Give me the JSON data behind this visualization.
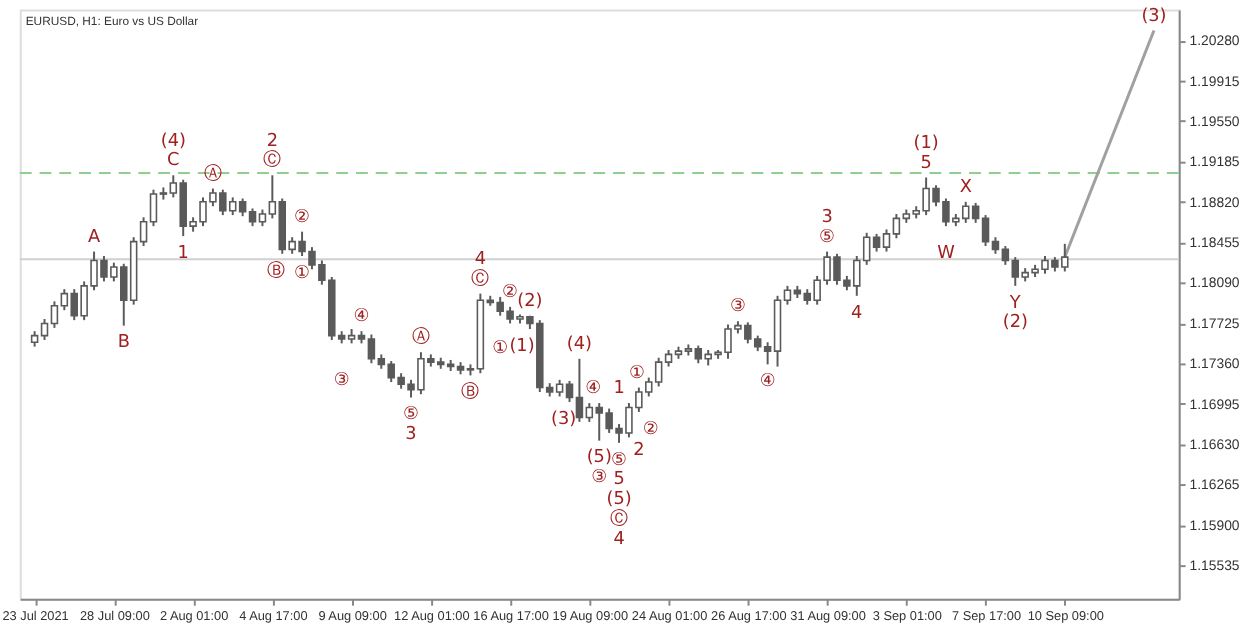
{
  "chart_data": {
    "type": "candlestick",
    "title": "EURUSD, H1:  Euro vs US Dollar",
    "categories": [
      "23 Jul 2021",
      null,
      null,
      null,
      null,
      null,
      null,
      null,
      "28 Jul 09:00",
      null,
      null,
      null,
      null,
      null,
      null,
      null,
      "2 Aug 01:00",
      null,
      null,
      null,
      null,
      null,
      null,
      null,
      "4 Aug 17:00",
      null,
      null,
      null,
      null,
      null,
      null,
      null,
      "9 Aug 09:00",
      null,
      null,
      null,
      null,
      null,
      null,
      null,
      "12 Aug 01:00",
      null,
      null,
      null,
      null,
      null,
      null,
      null,
      "16 Aug 17:00",
      null,
      null,
      null,
      null,
      null,
      null,
      null,
      "19 Aug 09:00",
      null,
      null,
      null,
      null,
      null,
      null,
      null,
      "24 Aug 01:00",
      null,
      null,
      null,
      null,
      null,
      null,
      null,
      "26 Aug 17:00",
      null,
      null,
      null,
      null,
      null,
      null,
      null,
      "31 Aug 09:00",
      null,
      null,
      null,
      null,
      null,
      null,
      null,
      "3 Sep 01:00",
      null,
      null,
      null,
      null,
      null,
      null,
      null,
      "7 Sep 17:00",
      null,
      null,
      null,
      null,
      null,
      null,
      null,
      "10 Sep 09:00",
      null,
      null,
      null,
      null,
      null,
      null,
      null,
      null,
      null,
      null
    ],
    "ylim": [
      1.1523,
      1.2056
    ],
    "yticks": [
      {
        "value": 1.15535,
        "label": "1.15535"
      },
      {
        "value": 1.159,
        "label": "1.15900"
      },
      {
        "value": 1.16265,
        "label": "1.16265"
      },
      {
        "value": 1.1663,
        "label": "1.16630"
      },
      {
        "value": 1.16995,
        "label": "1.16995"
      },
      {
        "value": 1.1736,
        "label": "1.17360"
      },
      {
        "value": 1.17725,
        "label": "1.17725"
      },
      {
        "value": 1.1809,
        "label": "1.18090"
      },
      {
        "value": 1.18455,
        "label": "1.18455"
      },
      {
        "value": 1.1882,
        "label": "1.18820"
      },
      {
        "value": 1.19185,
        "label": "1.19185"
      },
      {
        "value": 1.1955,
        "label": "1.19550"
      },
      {
        "value": 1.19915,
        "label": "1.19915"
      },
      {
        "value": 1.2028,
        "label": "1.20280"
      }
    ],
    "ref_lines": [
      {
        "axis": "y",
        "value": 1.1908,
        "color": "#8fcf8f",
        "line_style": "dashed"
      },
      {
        "axis": "y",
        "value": 1.183,
        "color": "#d0d0d0",
        "line_style": "solid"
      }
    ],
    "series": [
      {
        "type": "candlestick",
        "color": "#5a5a5a",
        "ohlc": [
          [
            1.1755,
            1.1765,
            1.1751,
            1.1761
          ],
          [
            1.1761,
            1.1776,
            1.1757,
            1.1772
          ],
          [
            1.1772,
            1.1792,
            1.1768,
            1.1788
          ],
          [
            1.1788,
            1.1803,
            1.1784,
            1.1799
          ],
          [
            1.1799,
            1.1803,
            1.1775,
            1.1779
          ],
          [
            1.1779,
            1.181,
            1.1775,
            1.1806
          ],
          [
            1.1806,
            1.1837,
            1.1802,
            1.1829
          ],
          [
            1.1829,
            1.1833,
            1.181,
            1.1814
          ],
          [
            1.1814,
            1.1827,
            1.181,
            1.1823
          ],
          [
            1.1823,
            1.1826,
            1.177,
            1.1793
          ],
          [
            1.1793,
            1.185,
            1.1789,
            1.1846
          ],
          [
            1.1846,
            1.1868,
            1.1842,
            1.1864
          ],
          [
            1.1864,
            1.1893,
            1.186,
            1.1889
          ],
          [
            1.1889,
            1.1895,
            1.1884,
            1.189
          ],
          [
            1.189,
            1.1906,
            1.1886,
            1.1899
          ],
          [
            1.1899,
            1.1902,
            1.1851,
            1.186
          ],
          [
            1.186,
            1.1868,
            1.1855,
            1.1864
          ],
          [
            1.1864,
            1.1886,
            1.186,
            1.1882
          ],
          [
            1.1882,
            1.1894,
            1.1878,
            1.189
          ],
          [
            1.189,
            1.1893,
            1.187,
            1.1874
          ],
          [
            1.1874,
            1.1886,
            1.187,
            1.1882
          ],
          [
            1.1882,
            1.1885,
            1.1869,
            1.1873
          ],
          [
            1.1873,
            1.1876,
            1.186,
            1.1864
          ],
          [
            1.1864,
            1.1875,
            1.186,
            1.1871
          ],
          [
            1.1871,
            1.1906,
            1.1867,
            1.1882
          ],
          [
            1.1882,
            1.1885,
            1.1835,
            1.1839
          ],
          [
            1.1839,
            1.185,
            1.1835,
            1.1846
          ],
          [
            1.1846,
            1.1855,
            1.1833,
            1.1837
          ],
          [
            1.1837,
            1.1841,
            1.1821,
            1.1825
          ],
          [
            1.1825,
            1.1829,
            1.1807,
            1.1811
          ],
          [
            1.1811,
            1.1814,
            1.1757,
            1.1761
          ],
          [
            1.1761,
            1.1765,
            1.1754,
            1.1758
          ],
          [
            1.1758,
            1.1767,
            1.1754,
            1.1761
          ],
          [
            1.1761,
            1.1765,
            1.1754,
            1.1758
          ],
          [
            1.1758,
            1.1762,
            1.1736,
            1.174
          ],
          [
            1.174,
            1.1744,
            1.1731,
            1.1735
          ],
          [
            1.1735,
            1.1738,
            1.1719,
            1.1723
          ],
          [
            1.1723,
            1.1727,
            1.1713,
            1.1717
          ],
          [
            1.1717,
            1.1721,
            1.1705,
            1.1712
          ],
          [
            1.1712,
            1.1746,
            1.1708,
            1.174
          ],
          [
            1.174,
            1.1744,
            1.1733,
            1.1737
          ],
          [
            1.1737,
            1.1741,
            1.1731,
            1.1735
          ],
          [
            1.1735,
            1.1739,
            1.1729,
            1.1733
          ],
          [
            1.1733,
            1.1737,
            1.1726,
            1.173
          ],
          [
            1.173,
            1.1735,
            1.1725,
            1.1731
          ],
          [
            1.1731,
            1.1799,
            1.1727,
            1.1793
          ],
          [
            1.1793,
            1.1797,
            1.1788,
            1.1791
          ],
          [
            1.1791,
            1.1796,
            1.1779,
            1.1783
          ],
          [
            1.1783,
            1.1787,
            1.1772,
            1.1776
          ],
          [
            1.1776,
            1.178,
            1.1772,
            1.1778
          ],
          [
            1.1778,
            1.1779,
            1.1767,
            1.1772
          ],
          [
            1.1772,
            1.1775,
            1.171,
            1.1714
          ],
          [
            1.1714,
            1.1718,
            1.1706,
            1.171
          ],
          [
            1.171,
            1.1721,
            1.1706,
            1.1717
          ],
          [
            1.1717,
            1.172,
            1.1701,
            1.1705
          ],
          [
            1.1705,
            1.174,
            1.1683,
            1.1687
          ],
          [
            1.1687,
            1.17,
            1.1683,
            1.1696
          ],
          [
            1.1696,
            1.17,
            1.1666,
            1.1691
          ],
          [
            1.1691,
            1.1695,
            1.1673,
            1.1677
          ],
          [
            1.1677,
            1.1681,
            1.1664,
            1.1673
          ],
          [
            1.1673,
            1.17,
            1.1669,
            1.1696
          ],
          [
            1.1696,
            1.1714,
            1.1692,
            1.171
          ],
          [
            1.171,
            1.1723,
            1.1706,
            1.1719
          ],
          [
            1.1719,
            1.1741,
            1.1715,
            1.1737
          ],
          [
            1.1737,
            1.1748,
            1.1733,
            1.1744
          ],
          [
            1.1744,
            1.1751,
            1.174,
            1.1747
          ],
          [
            1.1747,
            1.1753,
            1.1743,
            1.1749
          ],
          [
            1.1749,
            1.1752,
            1.1736,
            1.174
          ],
          [
            1.174,
            1.1748,
            1.1734,
            1.1744
          ],
          [
            1.1744,
            1.1748,
            1.174,
            1.1746
          ],
          [
            1.1746,
            1.1771,
            1.174,
            1.1767
          ],
          [
            1.1767,
            1.1774,
            1.1763,
            1.177
          ],
          [
            1.177,
            1.1773,
            1.1754,
            1.1758
          ],
          [
            1.1758,
            1.1761,
            1.1747,
            1.1751
          ],
          [
            1.1751,
            1.1755,
            1.1735,
            1.1747
          ],
          [
            1.1747,
            1.1797,
            1.1733,
            1.1793
          ],
          [
            1.1793,
            1.1806,
            1.1789,
            1.1802
          ],
          [
            1.1802,
            1.1806,
            1.1795,
            1.1799
          ],
          [
            1.1799,
            1.1803,
            1.1789,
            1.1793
          ],
          [
            1.1793,
            1.1815,
            1.1789,
            1.1811
          ],
          [
            1.1811,
            1.1837,
            1.1807,
            1.1832
          ],
          [
            1.1832,
            1.1835,
            1.1807,
            1.1811
          ],
          [
            1.1811,
            1.1815,
            1.1802,
            1.1806
          ],
          [
            1.1806,
            1.1833,
            1.1797,
            1.1829
          ],
          [
            1.1829,
            1.1854,
            1.1825,
            1.185
          ],
          [
            1.185,
            1.1853,
            1.1837,
            1.1841
          ],
          [
            1.1841,
            1.1857,
            1.1837,
            1.1853
          ],
          [
            1.1853,
            1.1871,
            1.1849,
            1.1867
          ],
          [
            1.1867,
            1.1875,
            1.1863,
            1.1871
          ],
          [
            1.1871,
            1.1878,
            1.1867,
            1.1874
          ],
          [
            1.1874,
            1.1904,
            1.187,
            1.1894
          ],
          [
            1.1894,
            1.1897,
            1.1878,
            1.1882
          ],
          [
            1.1882,
            1.1885,
            1.186,
            1.1864
          ],
          [
            1.1864,
            1.1871,
            1.186,
            1.1867
          ],
          [
            1.1867,
            1.1882,
            1.1863,
            1.1878
          ],
          [
            1.1878,
            1.1881,
            1.1863,
            1.1867
          ],
          [
            1.1867,
            1.187,
            1.1842,
            1.1846
          ],
          [
            1.1846,
            1.185,
            1.1835,
            1.1839
          ],
          [
            1.1839,
            1.1842,
            1.1825,
            1.1829
          ],
          [
            1.1829,
            1.1832,
            1.1806,
            1.1814
          ],
          [
            1.1814,
            1.1822,
            1.181,
            1.1818
          ],
          [
            1.1818,
            1.1825,
            1.1814,
            1.1821
          ],
          [
            1.1821,
            1.1833,
            1.1817,
            1.1829
          ],
          [
            1.1829,
            1.1832,
            1.1819,
            1.1823
          ],
          [
            1.1823,
            1.1844,
            1.1819,
            1.1832
          ],
          null,
          null,
          null,
          null,
          null,
          null,
          null,
          null,
          null,
          null
        ]
      },
      {
        "type": "line",
        "color": "#a0a0a0",
        "values": [
          null,
          null,
          null,
          null,
          null,
          null,
          null,
          null,
          null,
          null,
          null,
          null,
          null,
          null,
          null,
          null,
          null,
          null,
          null,
          null,
          null,
          null,
          null,
          null,
          null,
          null,
          null,
          null,
          null,
          null,
          null,
          null,
          null,
          null,
          null,
          null,
          null,
          null,
          null,
          null,
          null,
          null,
          null,
          null,
          null,
          null,
          null,
          null,
          null,
          null,
          null,
          null,
          null,
          null,
          null,
          null,
          null,
          null,
          null,
          null,
          null,
          null,
          null,
          null,
          null,
          null,
          null,
          null,
          null,
          null,
          null,
          null,
          null,
          null,
          null,
          null,
          null,
          null,
          null,
          null,
          null,
          null,
          null,
          null,
          null,
          null,
          null,
          null,
          null,
          null,
          null,
          null,
          null,
          null,
          null,
          null,
          null,
          null,
          null,
          null,
          null,
          null,
          null,
          null,
          1.1832,
          null,
          null,
          null,
          null,
          null,
          null,
          null,
          null,
          1.2037,
          null
        ]
      }
    ],
    "annotations": [
      "A",
      "B",
      "(4)",
      "C",
      "1",
      "Ⓐ",
      "2",
      "Ⓒ",
      "Ⓑ",
      "②",
      "①",
      "④",
      "③",
      "⑤",
      "3",
      "Ⓐ",
      "Ⓑ",
      "4",
      "Ⓒ",
      "②",
      "①",
      "(2)",
      "(1)",
      "(4)",
      "(3)",
      "④",
      "(5)",
      "③",
      "1",
      "①",
      "②",
      "2",
      "⑤",
      "5",
      "(5)",
      "Ⓒ",
      "4",
      "③",
      "④",
      "3",
      "⑤",
      "4",
      "(1)",
      "5",
      "X",
      "W",
      "Y",
      "(2)",
      "(3)"
    ]
  }
}
